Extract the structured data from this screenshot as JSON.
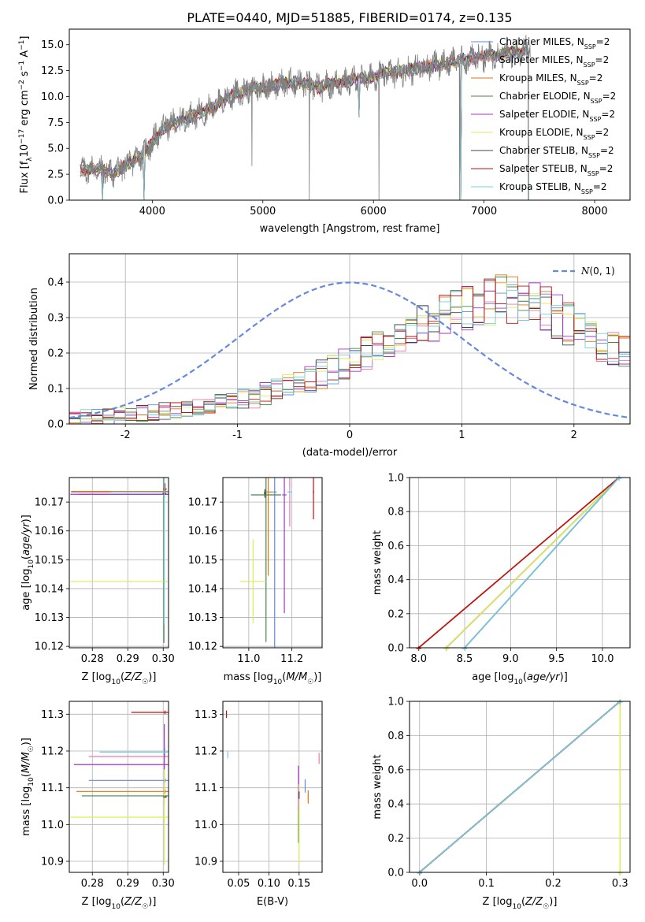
{
  "colors": {
    "Chabrier MILES": "#6688dd",
    "Salpeter MILES": "#ee77aa",
    "Kroupa MILES": "#dd7711",
    "Chabrier ELODIE": "#448844",
    "Salpeter ELODIE": "#aa33cc",
    "Kroupa ELODIE": "#ddee55",
    "Chabrier STELIB": "#444444",
    "Salpeter STELIB": "#bb1111",
    "Kroupa STELIB": "#77ccdd",
    "data": "#808080",
    "normal": "#6688dd"
  },
  "chart_data": [
    {
      "id": "spectrum",
      "type": "line",
      "title": "PLATE=0440, MJD=51885, FIBERID=0174, z=0.135",
      "xlabel": "wavelength [Angstrom, rest frame]",
      "ylabel": "Flux [f_λ 10^-17 erg cm^-2 s^-1 A^-1]",
      "xlim": [
        3250,
        8320
      ],
      "ylim": [
        0,
        16.5
      ],
      "xticks": [
        4000,
        5000,
        6000,
        7000,
        8000
      ],
      "yticks": [
        0.0,
        2.5,
        5.0,
        7.5,
        10.0,
        12.5,
        15.0
      ],
      "grid": false,
      "legend_position": "top-right",
      "legend": [
        {
          "name": "Chabrier MILES",
          "label": "Chabrier MILES, N",
          "sub": "SSP",
          "suffix": "=2"
        },
        {
          "name": "Salpeter MILES",
          "label": "Salpeter MILES, N",
          "sub": "SSP",
          "suffix": "=2"
        },
        {
          "name": "Kroupa MILES",
          "label": "Kroupa MILES, N",
          "sub": "SSP",
          "suffix": "=2"
        },
        {
          "name": "Chabrier ELODIE",
          "label": "Chabrier ELODIE, N",
          "sub": "SSP",
          "suffix": "=2"
        },
        {
          "name": "Salpeter ELODIE",
          "label": "Salpeter ELODIE, N",
          "sub": "SSP",
          "suffix": "=2"
        },
        {
          "name": "Kroupa ELODIE",
          "label": "Kroupa ELODIE, N",
          "sub": "SSP",
          "suffix": "=2"
        },
        {
          "name": "Chabrier STELIB",
          "label": "Chabrier STELIB, N",
          "sub": "SSP",
          "suffix": "=2"
        },
        {
          "name": "Salpeter STELIB",
          "label": "Salpeter STELIB, N",
          "sub": "SSP",
          "suffix": "=2"
        },
        {
          "name": "Kroupa STELIB",
          "label": "Kroupa STELIB, N",
          "sub": "SSP",
          "suffix": "=2"
        }
      ],
      "continuum": {
        "x": [
          3350,
          3500,
          3650,
          3800,
          3950,
          4100,
          4300,
          4500,
          4700,
          4900,
          5100,
          5300,
          5500,
          5700,
          5900,
          6100,
          6300,
          6500,
          6700,
          6900,
          7100,
          7300,
          7420
        ],
        "y": [
          2.9,
          3.0,
          2.6,
          3.6,
          4.8,
          7.0,
          7.9,
          8.7,
          10.0,
          10.8,
          11.1,
          11.4,
          10.9,
          11.4,
          11.7,
          12.2,
          12.5,
          12.9,
          13.3,
          13.7,
          14.0,
          14.3,
          14.6
        ]
      },
      "dips": [
        {
          "x": 3550,
          "y": 0.0
        },
        {
          "x": 3925,
          "y": 0.0
        },
        {
          "x": 5870,
          "y": 8.0
        },
        {
          "x": 6790,
          "y": 0.0
        },
        {
          "x": 7410,
          "y": 0.0
        }
      ],
      "data_spikes": [
        {
          "x": 4900,
          "y": 3.3
        },
        {
          "x": 5420,
          "y": 0.0
        },
        {
          "x": 6050,
          "y": 0.0
        },
        {
          "x": 6780,
          "y": 0.0
        },
        {
          "x": 7400,
          "y": 0.0
        }
      ]
    },
    {
      "id": "residuals",
      "type": "step",
      "xlabel": "(data-model)/error",
      "ylabel": "Normed distribution",
      "xlim": [
        -2.5,
        2.5
      ],
      "ylim": [
        0,
        0.48
      ],
      "xticks": [
        -2,
        -1,
        0,
        1,
        2
      ],
      "yticks": [
        0.0,
        0.1,
        0.2,
        0.3,
        0.4
      ],
      "grid": true,
      "legend_position": "top-right",
      "legend": [
        {
          "label": "N(0, 1)",
          "style": "dashed"
        }
      ],
      "bins": {
        "start": -2.5,
        "width": 0.1,
        "count": 50
      },
      "approx_profile": [
        0.015,
        0.018,
        0.02,
        0.022,
        0.025,
        0.028,
        0.03,
        0.033,
        0.036,
        0.04,
        0.045,
        0.05,
        0.055,
        0.06,
        0.065,
        0.07,
        0.075,
        0.085,
        0.095,
        0.105,
        0.115,
        0.125,
        0.14,
        0.155,
        0.17,
        0.185,
        0.2,
        0.215,
        0.23,
        0.245,
        0.26,
        0.275,
        0.29,
        0.3,
        0.31,
        0.32,
        0.33,
        0.34,
        0.35,
        0.35,
        0.34,
        0.33,
        0.32,
        0.3,
        0.28,
        0.26,
        0.24,
        0.23,
        0.22,
        0.21
      ],
      "normal_curve": {
        "mean": 0,
        "sd": 1
      }
    },
    {
      "id": "age-vs-Z",
      "type": "errorbar",
      "xlabel": "Z [log10(Z/Z☉)]",
      "ylabel": "age [log10(age/yr)]",
      "xlim": [
        0.2735,
        0.3015
      ],
      "ylim": [
        10.1195,
        10.1785
      ],
      "xticks": [
        0.28,
        0.29,
        0.3
      ],
      "yticks": [
        10.12,
        10.13,
        10.14,
        10.15,
        10.16,
        10.17
      ],
      "grid": true,
      "points": [
        {
          "model": "Chabrier MILES",
          "x": 0.3005,
          "y": 10.1735,
          "xerr": 0.0265,
          "yerr": 0.001
        },
        {
          "model": "Salpeter MILES",
          "x": 0.3005,
          "y": 10.1735,
          "xerr": 0.025,
          "yerr": 0.001
        },
        {
          "model": "Kroupa MILES",
          "x": 0.3005,
          "y": 10.1737,
          "xerr": 0.0265,
          "yerr": 0.001
        },
        {
          "model": "Chabrier ELODIE",
          "x": 0.3002,
          "y": 10.1727,
          "xerr": 0.024,
          "yerr": 0.0515
        },
        {
          "model": "Salpeter ELODIE",
          "x": 0.3003,
          "y": 10.1727,
          "xerr": 0.0265,
          "yerr": 0.001
        },
        {
          "model": "Kroupa ELODIE",
          "x": 0.3003,
          "y": 10.1425,
          "xerr": 0.0265,
          "yerr": 0.0015
        },
        {
          "model": "Chabrier STELIB",
          "x": 0.3003,
          "y": 10.173,
          "xerr": 0.0005,
          "yerr": 0.0015
        },
        {
          "model": "Salpeter STELIB",
          "x": 0.3005,
          "y": 10.1745,
          "xerr": 0.0005,
          "yerr": 0.002
        },
        {
          "model": "Kroupa STELIB",
          "x": 0.3003,
          "y": 10.1735,
          "xerr": 0.015,
          "yerr": 0.046
        }
      ]
    },
    {
      "id": "age-vs-mass",
      "type": "errorbar",
      "xlabel": "mass [log10(M/M☉)]",
      "ylabel": "",
      "xlim": [
        10.88,
        11.34
      ],
      "ylim": [
        10.1195,
        10.1785
      ],
      "xticks": [
        11.0,
        11.2
      ],
      "yticks": [
        10.12,
        10.13,
        10.14,
        10.15,
        10.16,
        10.17
      ],
      "grid": true,
      "points": [
        {
          "model": "Chabrier MILES",
          "x": 11.12,
          "y": 10.1735,
          "xerr": 0.01,
          "yerr": 0.06
        },
        {
          "model": "Salpeter MILES",
          "x": 11.19,
          "y": 10.1735,
          "xerr": 0.01,
          "yerr": 0.012
        },
        {
          "model": "Kroupa MILES",
          "x": 11.09,
          "y": 10.1735,
          "xerr": 0.02,
          "yerr": 0.029
        },
        {
          "model": "Chabrier ELODIE",
          "x": 11.08,
          "y": 10.1725,
          "xerr": 0.07,
          "yerr": 0.051
        },
        {
          "model": "Salpeter ELODIE",
          "x": 11.165,
          "y": 10.1725,
          "xerr": 0.01,
          "yerr": 0.041
        },
        {
          "model": "Kroupa ELODIE",
          "x": 11.02,
          "y": 10.1425,
          "xerr": 0.06,
          "yerr": 0.0145
        },
        {
          "model": "Chabrier STELIB",
          "x": 11.075,
          "y": 10.173,
          "xerr": 0.005,
          "yerr": 0.0015
        },
        {
          "model": "Salpeter STELIB",
          "x": 11.3,
          "y": 10.1735,
          "xerr": 0.003,
          "yerr": 0.0095
        },
        {
          "model": "Kroupa STELIB",
          "x": 11.19,
          "y": 10.1735,
          "xerr": 0.01,
          "yerr": 0.001
        }
      ]
    },
    {
      "id": "mass-weight-vs-age",
      "type": "line",
      "xlabel": "age [log10(age/yr)]",
      "ylabel": "mass weight",
      "xlim": [
        7.9,
        10.3
      ],
      "ylim": [
        0,
        1
      ],
      "xticks": [
        8.0,
        8.5,
        9.0,
        9.5,
        10.0
      ],
      "yticks": [
        0.0,
        0.2,
        0.4,
        0.6,
        0.8,
        1.0
      ],
      "grid": true,
      "series": [
        {
          "model": "Chabrier MILES",
          "x": [
            8.5,
            10.18
          ],
          "y": [
            0.0,
            1.0
          ]
        },
        {
          "model": "Salpeter MILES",
          "x": [
            8.0,
            10.18
          ],
          "y": [
            0.0,
            1.0
          ]
        },
        {
          "model": "Kroupa MILES",
          "x": [
            8.0,
            10.18
          ],
          "y": [
            0.0,
            1.0
          ]
        },
        {
          "model": "Chabrier ELODIE",
          "x": [
            8.3,
            10.18
          ],
          "y": [
            0.0,
            1.0
          ]
        },
        {
          "model": "Salpeter ELODIE",
          "x": [
            8.3,
            10.18
          ],
          "y": [
            0.0,
            1.0
          ]
        },
        {
          "model": "Kroupa ELODIE",
          "x": [
            8.3,
            10.18
          ],
          "y": [
            0.0,
            1.0
          ]
        },
        {
          "model": "Chabrier STELIB",
          "x": [
            8.5,
            10.18
          ],
          "y": [
            0.0,
            1.0
          ]
        },
        {
          "model": "Salpeter STELIB",
          "x": [
            8.0,
            10.18
          ],
          "y": [
            0.0,
            1.0
          ]
        },
        {
          "model": "Kroupa STELIB",
          "x": [
            8.5,
            10.18
          ],
          "y": [
            0.0,
            1.0
          ]
        }
      ]
    },
    {
      "id": "mass-vs-Z",
      "type": "errorbar",
      "xlabel": "Z [log10(Z/Z☉)]",
      "ylabel": "mass [log10(M/M☉)]",
      "xlim": [
        0.2735,
        0.3015
      ],
      "ylim": [
        10.87,
        11.335
      ],
      "xticks": [
        0.28,
        0.29,
        0.3
      ],
      "yticks": [
        10.9,
        11.0,
        11.1,
        11.2,
        11.3
      ],
      "grid": true,
      "points": [
        {
          "model": "Chabrier MILES",
          "x": 0.3005,
          "y": 11.12,
          "xerr": 0.0215,
          "yerr": 0.005
        },
        {
          "model": "Salpeter MILES",
          "x": 0.3005,
          "y": 11.185,
          "xerr": 0.0215,
          "yerr": 0.002
        },
        {
          "model": "Kroupa MILES",
          "x": 0.3005,
          "y": 11.09,
          "xerr": 0.025,
          "yerr": 0.005
        },
        {
          "model": "Chabrier ELODIE",
          "x": 0.3005,
          "y": 11.078,
          "xerr": 0.0235,
          "yerr": 0.002
        },
        {
          "model": "Salpeter ELODIE",
          "x": 0.3003,
          "y": 11.163,
          "xerr": 0.0255,
          "yerr": 0.11
        },
        {
          "model": "Kroupa ELODIE",
          "x": 0.3003,
          "y": 11.02,
          "xerr": 0.0265,
          "yerr": 0.13
        },
        {
          "model": "Chabrier STELIB",
          "x": 0.3005,
          "y": 11.075,
          "xerr": 0.0005,
          "yerr": 0.002
        },
        {
          "model": "Salpeter STELIB",
          "x": 0.3005,
          "y": 11.305,
          "xerr": 0.0095,
          "yerr": 0.005
        },
        {
          "model": "Kroupa STELIB",
          "x": 0.3005,
          "y": 11.197,
          "xerr": 0.0185,
          "yerr": 0.01
        }
      ]
    },
    {
      "id": "mass-vs-EBV",
      "type": "errorbar",
      "xlabel": "E(B-V)",
      "ylabel": "",
      "xlim": [
        0.024,
        0.188
      ],
      "ylim": [
        10.87,
        11.335
      ],
      "xticks": [
        0.05,
        0.1,
        0.15
      ],
      "yticks": [
        10.9,
        11.0,
        11.1,
        11.2,
        11.3
      ],
      "grid": true,
      "points": [
        {
          "model": "Chabrier MILES",
          "x": 0.16,
          "y": 11.105,
          "xerr": 0.0005,
          "yerr": 0.018
        },
        {
          "model": "Salpeter MILES",
          "x": 0.183,
          "y": 11.18,
          "xerr": 0.0005,
          "yerr": 0.015
        },
        {
          "model": "Kroupa MILES",
          "x": 0.165,
          "y": 11.075,
          "xerr": 0.0005,
          "yerr": 0.018
        },
        {
          "model": "Chabrier ELODIE",
          "x": 0.149,
          "y": 11.0,
          "xerr": 0.0005,
          "yerr": 0.05
        },
        {
          "model": "Salpeter ELODIE",
          "x": 0.149,
          "y": 11.1,
          "xerr": 0.0005,
          "yerr": 0.06
        },
        {
          "model": "Kroupa ELODIE",
          "x": 0.15,
          "y": 11.0,
          "xerr": 0.0005,
          "yerr": 0.11
        },
        {
          "model": "Chabrier STELIB",
          "x": 0.15,
          "y": 11.08,
          "xerr": 0.0005,
          "yerr": 0.01
        },
        {
          "model": "Salpeter STELIB",
          "x": 0.03,
          "y": 11.3,
          "xerr": 0.0005,
          "yerr": 0.01
        },
        {
          "model": "Kroupa STELIB",
          "x": 0.032,
          "y": 11.19,
          "xerr": 0.0005,
          "yerr": 0.01
        }
      ]
    },
    {
      "id": "mass-weight-vs-Z",
      "type": "line",
      "xlabel": "Z [log10(Z/Z☉)]",
      "ylabel": "mass weight",
      "xlim": [
        -0.015,
        0.315
      ],
      "ylim": [
        0,
        1
      ],
      "xticks": [
        0.0,
        0.1,
        0.2,
        0.3
      ],
      "yticks": [
        0.0,
        0.2,
        0.4,
        0.6,
        0.8,
        1.0
      ],
      "grid": true,
      "series": [
        {
          "model": "Chabrier MILES",
          "x": [
            0.0,
            0.3
          ],
          "y": [
            0.0,
            1.0
          ]
        },
        {
          "model": "Salpeter MILES",
          "x": [
            0.0,
            0.3
          ],
          "y": [
            0.0,
            1.0
          ]
        },
        {
          "model": "Kroupa MILES",
          "x": [
            0.0,
            0.3
          ],
          "y": [
            0.0,
            1.0
          ]
        },
        {
          "model": "Chabrier ELODIE",
          "x": [
            0.0,
            0.3
          ],
          "y": [
            0.0,
            1.0
          ]
        },
        {
          "model": "Salpeter ELODIE",
          "x": [
            0.0,
            0.3
          ],
          "y": [
            0.0,
            1.0
          ]
        },
        {
          "model": "Kroupa ELODIE",
          "x": [
            0.3,
            0.3
          ],
          "y": [
            0.0,
            1.0
          ]
        },
        {
          "model": "Chabrier STELIB",
          "x": [
            0.0,
            0.3
          ],
          "y": [
            0.0,
            1.0
          ]
        },
        {
          "model": "Salpeter STELIB",
          "x": [
            0.0,
            0.3
          ],
          "y": [
            0.0,
            1.0
          ]
        },
        {
          "model": "Kroupa STELIB",
          "x": [
            0.0,
            0.3
          ],
          "y": [
            0.0,
            1.0
          ]
        }
      ]
    }
  ]
}
